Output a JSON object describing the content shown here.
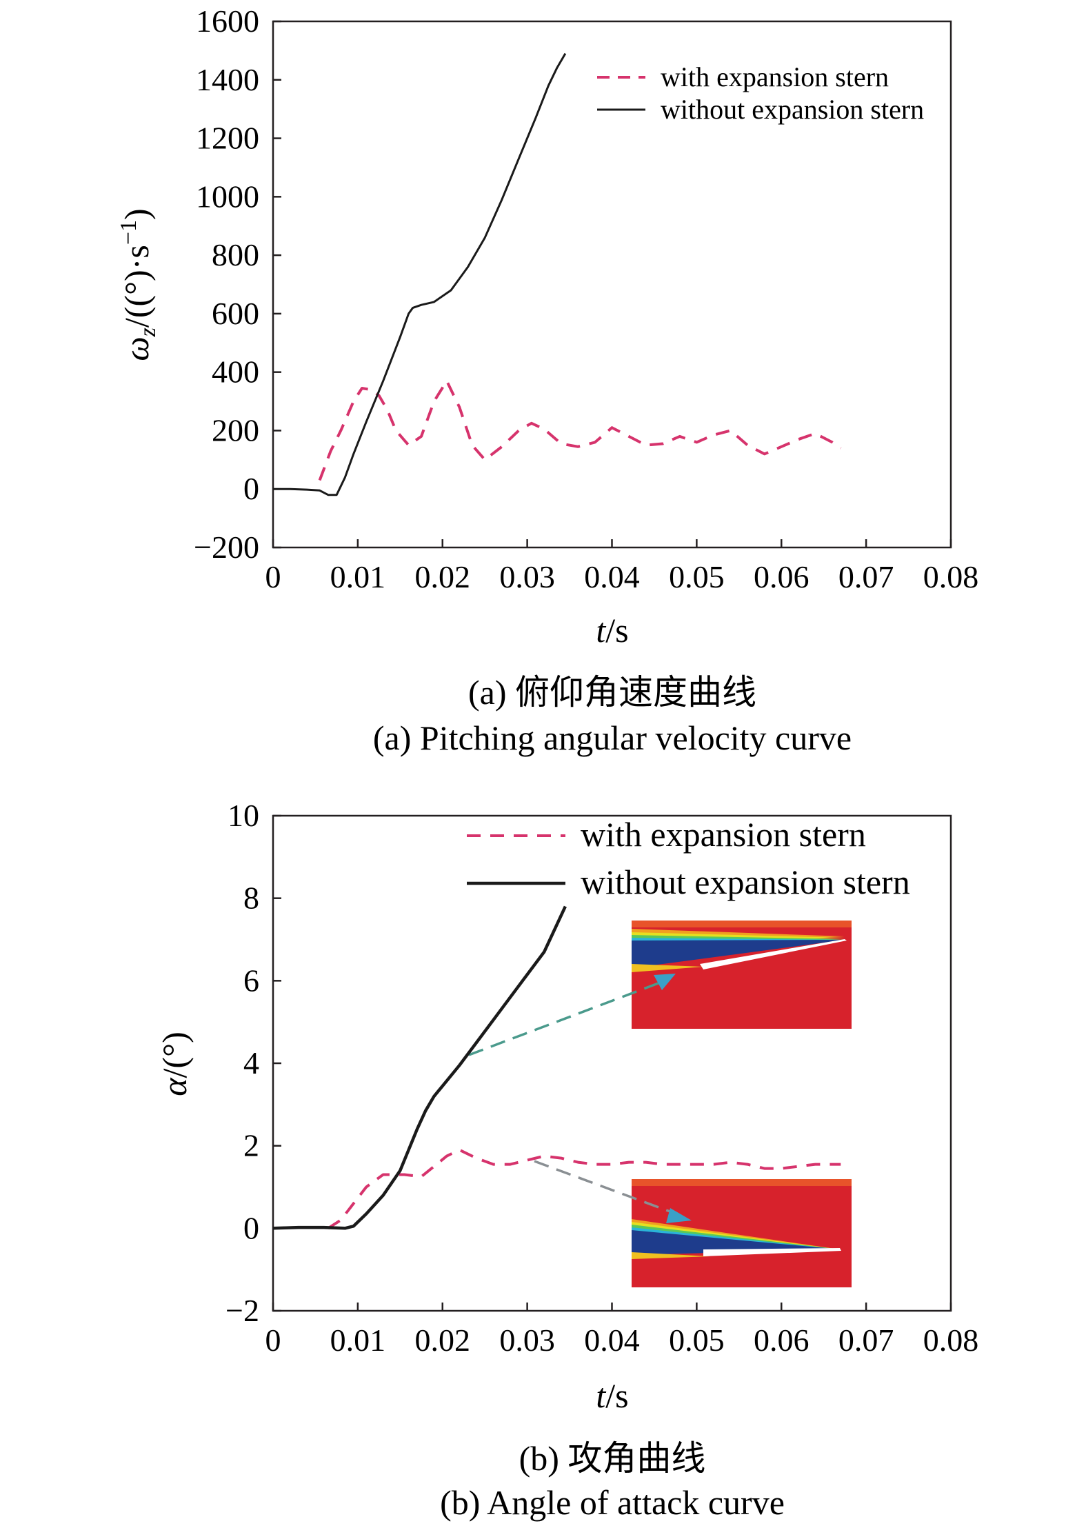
{
  "chart_data": [
    {
      "type": "line",
      "xlabel_var": "t",
      "xlabel_unit": "/s",
      "ylabel_var": "ω",
      "ylabel_sub": "z",
      "ylabel_unit": "/((°)·s",
      "ylabel_sup": "−1",
      "ylabel_close": ")",
      "xlim": [
        0,
        0.08
      ],
      "ylim": [
        -200,
        1600
      ],
      "x_ticks": [
        0,
        0.01,
        0.02,
        0.03,
        0.04,
        0.05,
        0.06,
        0.07,
        0.08
      ],
      "x_tick_labels": [
        "0",
        "0.01",
        "0.02",
        "0.03",
        "0.04",
        "0.05",
        "0.06",
        "0.07",
        "0.08"
      ],
      "y_ticks": [
        -200,
        0,
        200,
        400,
        600,
        800,
        1000,
        1200,
        1400,
        1600
      ],
      "y_tick_labels": [
        "−200",
        "0",
        "200",
        "400",
        "600",
        "800",
        "1000",
        "1200",
        "1400",
        "1600"
      ],
      "legend_position": "top-right",
      "caption_cn": "(a) 俯仰角速度曲线",
      "caption_en": "(a) Pitching angular velocity curve",
      "series": [
        {
          "name": "with expansion stern",
          "style": "dashed",
          "color": "#d6336c",
          "x": [
            0.0055,
            0.0068,
            0.008,
            0.0095,
            0.0105,
            0.0115,
            0.0125,
            0.0135,
            0.0145,
            0.016,
            0.0175,
            0.019,
            0.0205,
            0.022,
            0.0235,
            0.025,
            0.027,
            0.029,
            0.0305,
            0.032,
            0.034,
            0.036,
            0.038,
            0.04,
            0.042,
            0.044,
            0.046,
            0.048,
            0.05,
            0.052,
            0.054,
            0.056,
            0.058,
            0.06,
            0.062,
            0.064,
            0.066,
            0.067
          ],
          "y": [
            30,
            130,
            200,
            300,
            345,
            340,
            320,
            270,
            200,
            150,
            180,
            300,
            370,
            280,
            150,
            100,
            145,
            200,
            225,
            205,
            155,
            145,
            160,
            210,
            180,
            150,
            155,
            180,
            160,
            185,
            200,
            150,
            120,
            145,
            170,
            190,
            160,
            140
          ]
        },
        {
          "name": "without expansion stern",
          "style": "solid",
          "color": "#1a1a1a",
          "x": [
            0,
            0.002,
            0.004,
            0.0055,
            0.0065,
            0.0075,
            0.0085,
            0.0095,
            0.011,
            0.013,
            0.015,
            0.016,
            0.0165,
            0.0175,
            0.019,
            0.021,
            0.023,
            0.025,
            0.027,
            0.029,
            0.031,
            0.0325,
            0.0335,
            0.0345
          ],
          "y": [
            0,
            0,
            -2,
            -5,
            -20,
            -20,
            40,
            120,
            230,
            370,
            520,
            600,
            620,
            630,
            640,
            680,
            760,
            860,
            990,
            1130,
            1270,
            1380,
            1440,
            1490
          ]
        }
      ]
    },
    {
      "type": "line",
      "xlabel_var": "t",
      "xlabel_unit": "/s",
      "ylabel_var": "α",
      "ylabel_unit": "/(°)",
      "xlim": [
        0,
        0.08
      ],
      "ylim": [
        -2,
        10
      ],
      "x_ticks": [
        0,
        0.01,
        0.02,
        0.03,
        0.04,
        0.05,
        0.06,
        0.07,
        0.08
      ],
      "x_tick_labels": [
        "0",
        "0.01",
        "0.02",
        "0.03",
        "0.04",
        "0.05",
        "0.06",
        "0.07",
        "0.08"
      ],
      "y_ticks": [
        -2,
        0,
        2,
        4,
        6,
        8,
        10
      ],
      "y_tick_labels": [
        "−2",
        "0",
        "2",
        "4",
        "6",
        "8",
        "10"
      ],
      "legend_position": "top-right",
      "caption_cn": "(b) 攻角曲线",
      "caption_en": "(b) Angle of attack curve",
      "series": [
        {
          "name": "with expansion stern",
          "style": "dashed",
          "color": "#d6336c",
          "x": [
            0.0065,
            0.008,
            0.0095,
            0.011,
            0.013,
            0.0155,
            0.0175,
            0.019,
            0.0205,
            0.022,
            0.024,
            0.026,
            0.028,
            0.03,
            0.032,
            0.034,
            0.036,
            0.038,
            0.04,
            0.042,
            0.044,
            0.046,
            0.048,
            0.05,
            0.052,
            0.054,
            0.056,
            0.058,
            0.06,
            0.062,
            0.064,
            0.066,
            0.067
          ],
          "y": [
            0,
            0.2,
            0.6,
            1.0,
            1.3,
            1.3,
            1.25,
            1.5,
            1.75,
            1.9,
            1.7,
            1.55,
            1.55,
            1.65,
            1.75,
            1.7,
            1.6,
            1.55,
            1.55,
            1.6,
            1.6,
            1.55,
            1.55,
            1.55,
            1.55,
            1.6,
            1.55,
            1.45,
            1.45,
            1.5,
            1.55,
            1.55,
            1.55
          ]
        },
        {
          "name": "without expansion stern",
          "style": "solid",
          "color": "#1a1a1a",
          "x": [
            0,
            0.003,
            0.006,
            0.0085,
            0.0095,
            0.011,
            0.013,
            0.015,
            0.016,
            0.017,
            0.018,
            0.019,
            0.02,
            0.022,
            0.024,
            0.026,
            0.028,
            0.03,
            0.032,
            0.0345
          ],
          "y": [
            0,
            0.02,
            0.02,
            0.0,
            0.05,
            0.35,
            0.8,
            1.4,
            1.9,
            2.4,
            2.85,
            3.2,
            3.45,
            3.95,
            4.5,
            5.05,
            5.6,
            6.15,
            6.7,
            7.8
          ]
        }
      ]
    }
  ],
  "colors": {
    "axis": "#231f20",
    "with_expansion": "#d6336c",
    "without_expansion": "#1a1a1a",
    "inset_red": "#d7222c",
    "inset_blue": "#1e3c8c",
    "arrow_teal": "#4a9a8c",
    "arrow_grey": "#8a8f93",
    "arrow_head": "#3aa0c8"
  }
}
